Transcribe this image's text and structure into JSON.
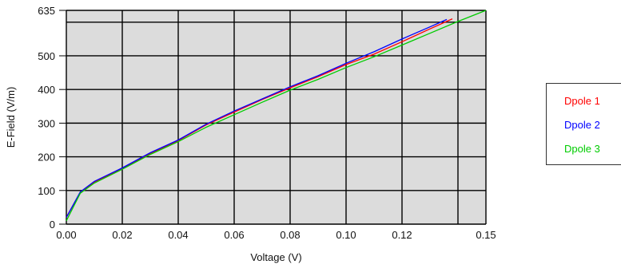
{
  "chart_data": {
    "type": "line",
    "title": "",
    "xlabel": "Voltage (V)",
    "ylabel": "E-Field (V/m)",
    "xlim": [
      0,
      0.15
    ],
    "ylim": [
      0,
      635
    ],
    "x_ticks": [
      0,
      0.02,
      0.04,
      0.06,
      0.08,
      0.1,
      0.12,
      0.14,
      0.15
    ],
    "x_tick_labels": [
      "0.00",
      "0.02",
      "0.04",
      "0.06",
      "0.08",
      "0.10",
      "0.12",
      "",
      "0.15"
    ],
    "y_ticks": [
      0,
      100,
      200,
      300,
      400,
      500,
      600,
      635
    ],
    "y_tick_labels": [
      "0",
      "100",
      "200",
      "300",
      "400",
      "500",
      "",
      "635"
    ],
    "grid": true,
    "legend_position": "right",
    "background": "#dcdcdc",
    "series": [
      {
        "name": "Dpole 1",
        "color": "#ff0000",
        "x": [
          0,
          0.005,
          0.01,
          0.02,
          0.03,
          0.04,
          0.05,
          0.06,
          0.07,
          0.08,
          0.09,
          0.1,
          0.11,
          0.12,
          0.13,
          0.138
        ],
        "y": [
          20,
          95,
          125,
          165,
          210,
          248,
          295,
          333,
          370,
          405,
          438,
          474,
          505,
          542,
          580,
          610
        ]
      },
      {
        "name": "Dpole 2",
        "color": "#0000ff",
        "x": [
          0,
          0.005,
          0.01,
          0.02,
          0.03,
          0.04,
          0.05,
          0.06,
          0.07,
          0.08,
          0.09,
          0.1,
          0.11,
          0.12,
          0.13,
          0.136
        ],
        "y": [
          20,
          96,
          127,
          167,
          212,
          250,
          297,
          336,
          372,
          408,
          441,
          478,
          512,
          550,
          586,
          608
        ]
      },
      {
        "name": "Dpole 3",
        "color": "#00cc00",
        "x": [
          0,
          0.005,
          0.01,
          0.02,
          0.03,
          0.04,
          0.05,
          0.06,
          0.07,
          0.08,
          0.09,
          0.1,
          0.11,
          0.12,
          0.13,
          0.14,
          0.15
        ],
        "y": [
          10,
          92,
          122,
          163,
          207,
          245,
          288,
          325,
          362,
          398,
          430,
          465,
          497,
          532,
          567,
          602,
          635
        ]
      }
    ]
  }
}
